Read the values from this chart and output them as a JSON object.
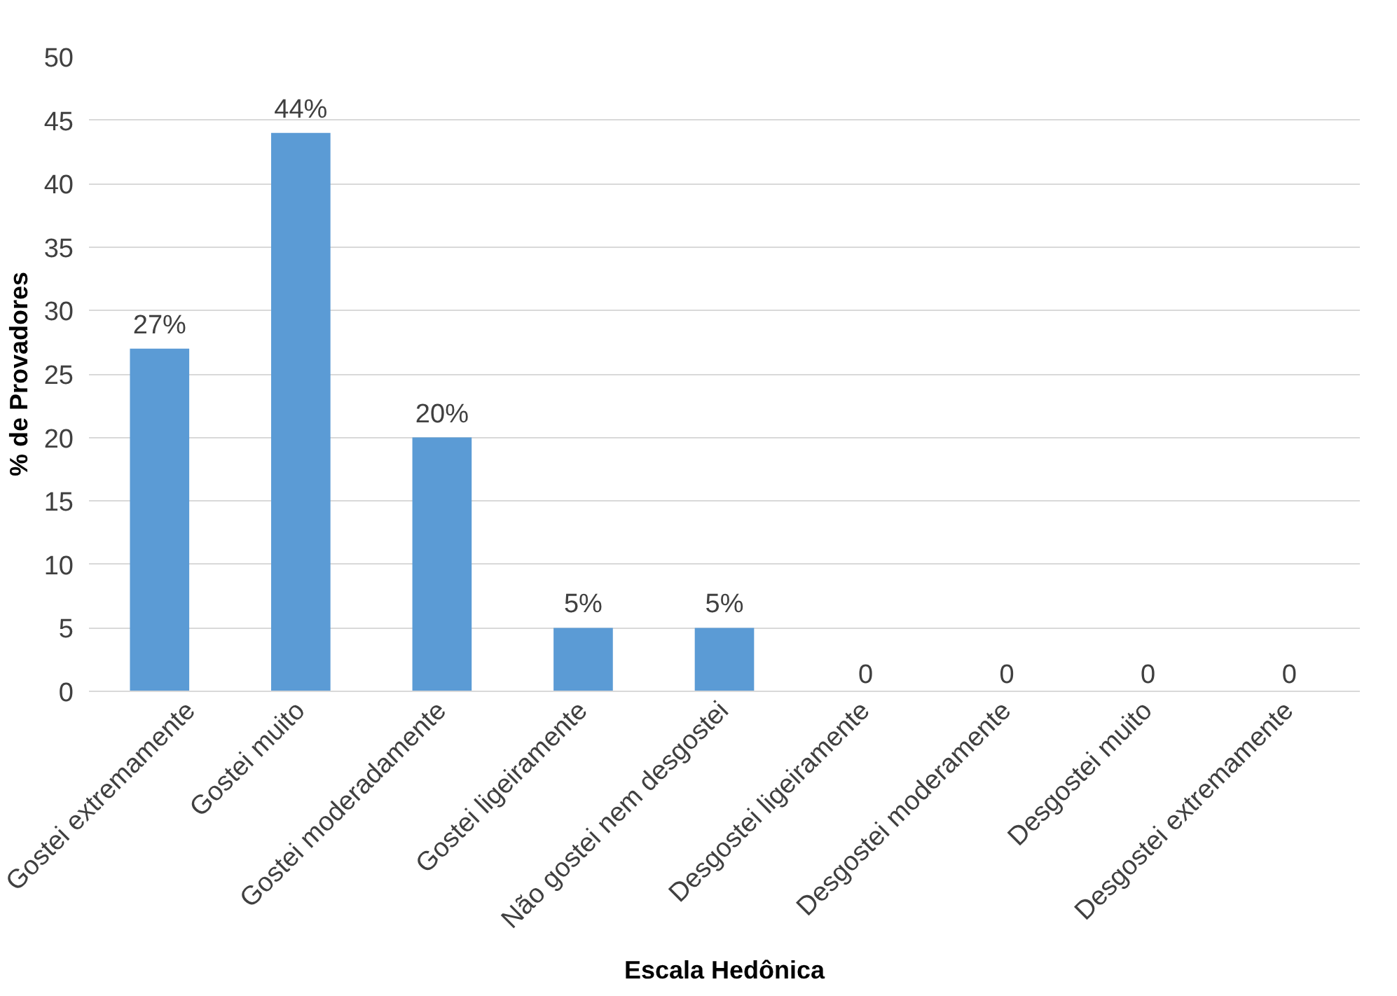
{
  "chart_data": {
    "type": "bar",
    "xlabel": "Escala Hedônica",
    "ylabel": "% de Provadores",
    "categories": [
      "Gostei extremamente",
      "Gostei muito",
      "Gostei moderadamente",
      "Gostei ligeiramente",
      "Não gostei nem desgostei",
      "Desgostei ligeiramente",
      "Desgostei moderamente",
      "Desgostei muito",
      "Desgostei extremamente"
    ],
    "values": [
      27,
      44,
      20,
      5,
      5,
      0,
      0,
      0,
      0
    ],
    "value_labels": [
      "27%",
      "44%",
      "20%",
      "5%",
      "5%",
      "0",
      "0",
      "0",
      "0"
    ],
    "color": "#5b9bd5",
    "ylim": [
      0,
      50
    ],
    "yticks": [
      0,
      5,
      10,
      15,
      20,
      25,
      30,
      35,
      40,
      45,
      50
    ],
    "grid": "y"
  }
}
